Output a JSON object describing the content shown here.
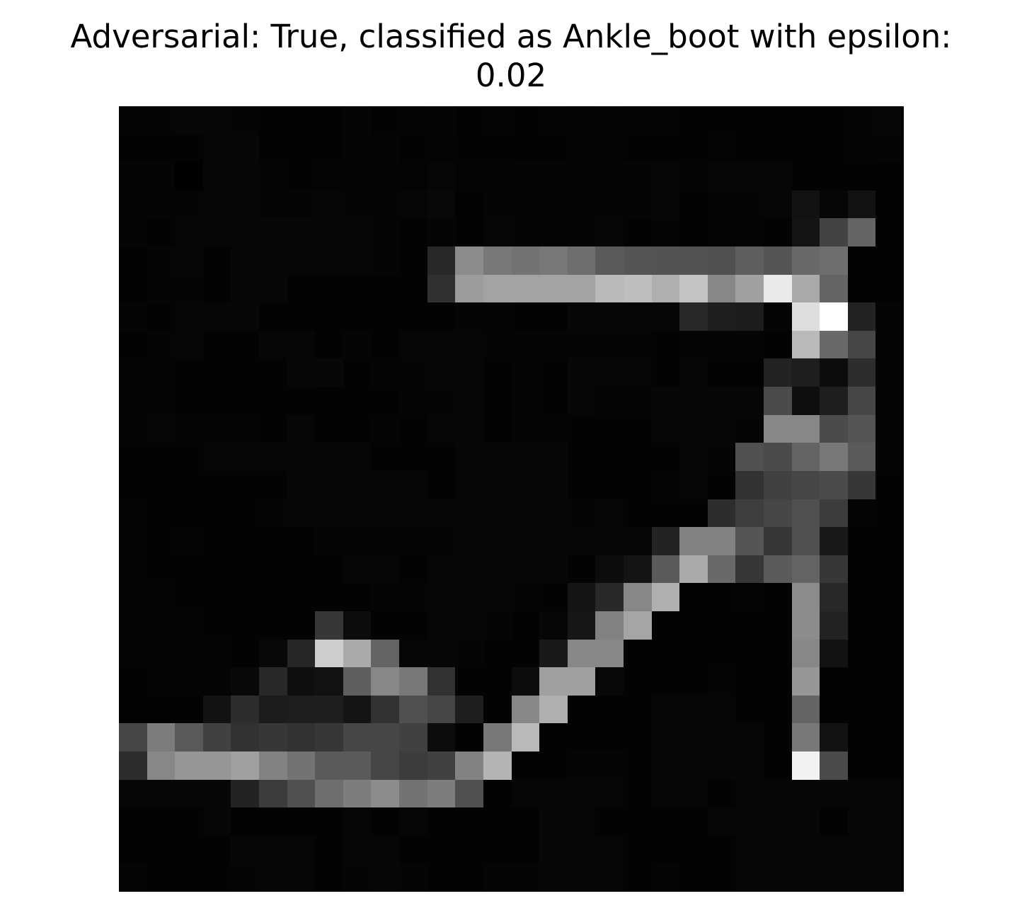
{
  "chart_data": {
    "type": "heatmap",
    "title_line1": "Adversarial: True, classified as Ankle_boot with epsilon:",
    "title_line2": "0.02",
    "colormap": "gray",
    "axes_visible": false,
    "rows": 28,
    "cols": 28,
    "vmin": 0,
    "vmax": 255,
    "pixels": [
      [
        5,
        5,
        6,
        6,
        5,
        3,
        3,
        3,
        5,
        3,
        4,
        5,
        3,
        4,
        3,
        5,
        4,
        5,
        4,
        5,
        3,
        3,
        3,
        3,
        3,
        3,
        5,
        6
      ],
      [
        3,
        3,
        3,
        6,
        6,
        3,
        3,
        3,
        5,
        5,
        3,
        4,
        3,
        3,
        3,
        3,
        4,
        4,
        3,
        3,
        3,
        4,
        3,
        3,
        3,
        3,
        4,
        5
      ],
      [
        5,
        5,
        1,
        6,
        6,
        4,
        3,
        4,
        5,
        5,
        4,
        6,
        4,
        4,
        5,
        5,
        5,
        5,
        5,
        6,
        4,
        6,
        6,
        6,
        3,
        3,
        3,
        3
      ],
      [
        5,
        5,
        5,
        6,
        6,
        5,
        5,
        6,
        5,
        5,
        6,
        8,
        3,
        5,
        5,
        5,
        5,
        5,
        5,
        6,
        3,
        5,
        5,
        6,
        18,
        6,
        18,
        3
      ],
      [
        5,
        3,
        6,
        6,
        7,
        7,
        7,
        7,
        6,
        5,
        3,
        5,
        3,
        6,
        5,
        5,
        5,
        6,
        3,
        5,
        3,
        4,
        4,
        3,
        20,
        67,
        100,
        3
      ],
      [
        3,
        5,
        6,
        3,
        6,
        6,
        6,
        7,
        6,
        5,
        3,
        40,
        140,
        120,
        115,
        120,
        110,
        90,
        85,
        83,
        83,
        80,
        95,
        85,
        105,
        110,
        3,
        3
      ],
      [
        3,
        5,
        5,
        3,
        6,
        6,
        3,
        3,
        3,
        3,
        3,
        48,
        155,
        163,
        163,
        163,
        163,
        185,
        190,
        175,
        195,
        135,
        160,
        233,
        170,
        100,
        3,
        3
      ],
      [
        5,
        3,
        6,
        6,
        6,
        3,
        3,
        3,
        3,
        3,
        3,
        3,
        5,
        4,
        3,
        3,
        6,
        6,
        6,
        6,
        40,
        30,
        28,
        5,
        222,
        255,
        35,
        5
      ],
      [
        3,
        5,
        6,
        3,
        3,
        6,
        6,
        3,
        5,
        3,
        6,
        6,
        6,
        5,
        5,
        5,
        5,
        5,
        5,
        3,
        5,
        5,
        5,
        3,
        185,
        105,
        70,
        5
      ],
      [
        5,
        5,
        3,
        3,
        3,
        3,
        6,
        7,
        3,
        5,
        5,
        6,
        6,
        3,
        5,
        3,
        6,
        6,
        6,
        3,
        6,
        3,
        3,
        35,
        30,
        12,
        45,
        5
      ],
      [
        5,
        5,
        3,
        3,
        3,
        3,
        3,
        3,
        3,
        3,
        5,
        5,
        6,
        3,
        5,
        3,
        6,
        4,
        4,
        6,
        6,
        6,
        6,
        75,
        15,
        30,
        70,
        5
      ],
      [
        5,
        6,
        5,
        5,
        5,
        3,
        6,
        3,
        3,
        5,
        3,
        6,
        6,
        3,
        5,
        5,
        3,
        3,
        3,
        6,
        6,
        6,
        5,
        135,
        135,
        75,
        85,
        5
      ],
      [
        3,
        3,
        3,
        6,
        6,
        6,
        6,
        6,
        6,
        3,
        3,
        3,
        6,
        6,
        6,
        6,
        3,
        3,
        3,
        3,
        6,
        5,
        80,
        75,
        100,
        120,
        90,
        5
      ],
      [
        3,
        3,
        3,
        3,
        3,
        3,
        6,
        6,
        6,
        6,
        6,
        3,
        6,
        6,
        6,
        6,
        3,
        3,
        3,
        5,
        6,
        3,
        50,
        65,
        70,
        75,
        55,
        3
      ],
      [
        5,
        3,
        3,
        3,
        3,
        5,
        6,
        6,
        6,
        6,
        6,
        6,
        6,
        6,
        6,
        6,
        5,
        6,
        3,
        3,
        3,
        45,
        62,
        70,
        80,
        60,
        4,
        3
      ],
      [
        5,
        3,
        5,
        3,
        3,
        3,
        3,
        5,
        5,
        5,
        5,
        5,
        6,
        6,
        6,
        6,
        6,
        6,
        6,
        35,
        130,
        130,
        85,
        55,
        80,
        25,
        3,
        3
      ],
      [
        5,
        3,
        3,
        3,
        3,
        3,
        3,
        3,
        6,
        6,
        3,
        6,
        6,
        6,
        6,
        6,
        3,
        12,
        20,
        90,
        170,
        105,
        55,
        90,
        100,
        55,
        3,
        3
      ],
      [
        5,
        5,
        3,
        3,
        3,
        3,
        3,
        3,
        3,
        5,
        5,
        6,
        6,
        6,
        5,
        3,
        20,
        40,
        135,
        175,
        3,
        3,
        5,
        3,
        140,
        40,
        3,
        3
      ],
      [
        5,
        5,
        5,
        3,
        3,
        3,
        3,
        55,
        12,
        3,
        3,
        6,
        6,
        5,
        3,
        6,
        22,
        130,
        165,
        3,
        3,
        3,
        3,
        3,
        140,
        35,
        3,
        3
      ],
      [
        5,
        5,
        5,
        5,
        3,
        8,
        38,
        205,
        170,
        100,
        6,
        6,
        5,
        3,
        3,
        25,
        135,
        135,
        3,
        3,
        3,
        3,
        3,
        3,
        135,
        18,
        3,
        3
      ],
      [
        3,
        5,
        5,
        5,
        8,
        40,
        15,
        18,
        95,
        135,
        120,
        50,
        3,
        3,
        12,
        160,
        160,
        8,
        3,
        3,
        3,
        5,
        3,
        3,
        150,
        3,
        3,
        3
      ],
      [
        3,
        3,
        3,
        18,
        45,
        28,
        30,
        30,
        20,
        50,
        80,
        70,
        30,
        3,
        135,
        175,
        3,
        3,
        3,
        6,
        6,
        6,
        3,
        3,
        100,
        3,
        3,
        3
      ],
      [
        70,
        125,
        90,
        65,
        50,
        55,
        50,
        55,
        70,
        70,
        65,
        12,
        3,
        120,
        185,
        3,
        3,
        3,
        3,
        6,
        6,
        6,
        6,
        3,
        120,
        18,
        3,
        3
      ],
      [
        45,
        135,
        150,
        150,
        160,
        130,
        115,
        90,
        90,
        70,
        60,
        65,
        130,
        180,
        3,
        3,
        5,
        5,
        3,
        6,
        6,
        6,
        6,
        3,
        242,
        75,
        3,
        3
      ],
      [
        6,
        6,
        6,
        6,
        35,
        60,
        80,
        110,
        125,
        140,
        115,
        125,
        80,
        3,
        6,
        6,
        6,
        6,
        3,
        6,
        6,
        3,
        6,
        6,
        6,
        6,
        6,
        6
      ],
      [
        3,
        3,
        3,
        6,
        3,
        3,
        3,
        3,
        6,
        3,
        6,
        3,
        3,
        3,
        3,
        6,
        6,
        3,
        3,
        3,
        3,
        6,
        6,
        6,
        6,
        3,
        6,
        6
      ],
      [
        3,
        3,
        3,
        3,
        6,
        6,
        6,
        3,
        6,
        6,
        3,
        3,
        3,
        3,
        3,
        6,
        6,
        6,
        3,
        3,
        3,
        3,
        6,
        6,
        6,
        6,
        6,
        6
      ],
      [
        5,
        3,
        3,
        3,
        5,
        6,
        6,
        3,
        5,
        6,
        5,
        3,
        3,
        5,
        5,
        6,
        6,
        6,
        3,
        5,
        3,
        3,
        6,
        6,
        6,
        6,
        6,
        6
      ]
    ]
  }
}
